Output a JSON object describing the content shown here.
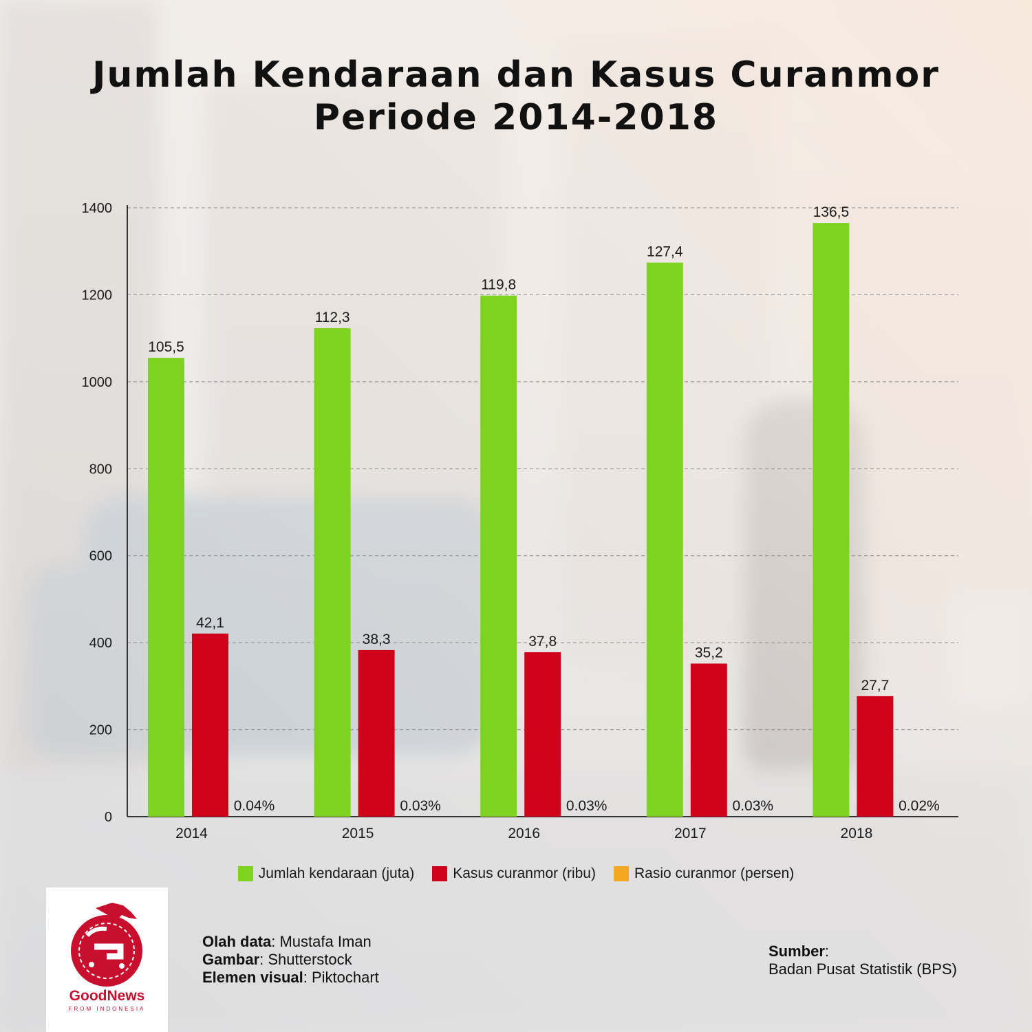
{
  "header": {
    "title_line1": "Jumlah Kendaraan dan Kasus Curanmor",
    "title_line2": "Periode 2014-2018"
  },
  "chart_data": {
    "type": "bar",
    "categories": [
      "2014",
      "2015",
      "2016",
      "2017",
      "2018"
    ],
    "ylim": [
      0,
      1400
    ],
    "yticks": [
      0,
      200,
      400,
      600,
      800,
      1000,
      1200,
      1400
    ],
    "grid": true,
    "legend_position": "bottom",
    "series": [
      {
        "name": "Jumlah kendaraan (juta)",
        "color": "#7ed321",
        "values": [
          1055,
          1123,
          1198,
          1274,
          1365
        ],
        "labels": [
          "105,5",
          "112,3",
          "119,8",
          "127,4",
          "136,5"
        ]
      },
      {
        "name": "Kasus curanmor (ribu)",
        "color": "#d0021b",
        "values": [
          421,
          383,
          378,
          352,
          277
        ],
        "labels": [
          "42,1",
          "38,3",
          "37,8",
          "35,2",
          "27,7"
        ]
      },
      {
        "name": "Rasio curanmor (persen)",
        "color": "#f5a623",
        "values": [
          0.04,
          0.03,
          0.03,
          0.03,
          0.02
        ],
        "labels": [
          "0.04%",
          "0.03%",
          "0.03%",
          "0.03%",
          "0.02%"
        ]
      }
    ]
  },
  "credits": {
    "olah_label": "Olah data",
    "olah_value": ": Mustafa Iman",
    "gambar_label": "Gambar",
    "gambar_value": ": Shutterstock",
    "elemen_label": "Elemen visual",
    "elemen_value": ": Piktochart"
  },
  "source": {
    "label": "Sumber",
    "label_suffix": ":",
    "value": "Badan Pusat Statistik (BPS)"
  },
  "logo": {
    "name": "GoodNews",
    "sub": "FROM INDONESIA",
    "color": "#c8102e"
  }
}
